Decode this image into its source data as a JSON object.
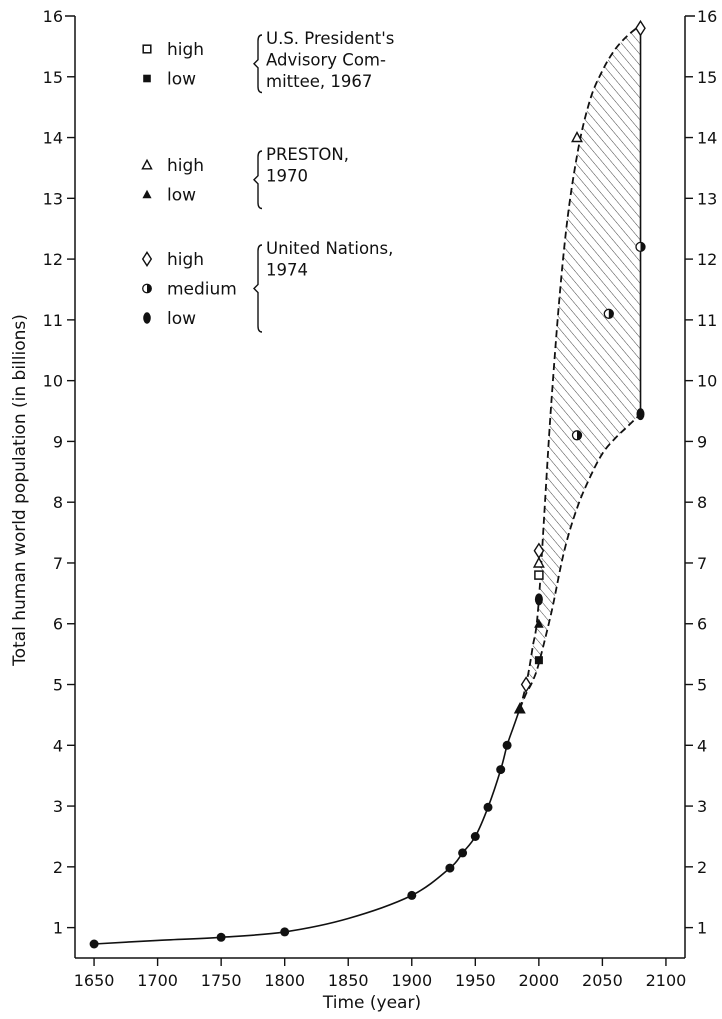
{
  "chart_data": {
    "type": "line",
    "xlabel": "Time (year)",
    "ylabel": "Total human world population (in billions)",
    "xlim": [
      1635,
      2115
    ],
    "ylim": [
      0.5,
      16
    ],
    "x_ticks": [
      1650,
      1700,
      1750,
      1800,
      1850,
      1900,
      1950,
      2000,
      2050,
      2100
    ],
    "y_ticks": [
      1,
      2,
      3,
      4,
      5,
      6,
      7,
      8,
      9,
      10,
      11,
      12,
      13,
      14,
      15,
      16
    ],
    "x_tick_labels": [
      "1650",
      "1700",
      "1750",
      "1800",
      "1850",
      "1900",
      "1950",
      "2000",
      "2050",
      "2100"
    ],
    "y_tick_labels": [
      "1",
      "2",
      "3",
      "4",
      "5",
      "6",
      "7",
      "8",
      "9",
      "10",
      "11",
      "12",
      "13",
      "14",
      "15",
      "16"
    ],
    "grid": false,
    "historical": {
      "x": [
        1650,
        1750,
        1800,
        1900,
        1930,
        1940,
        1950,
        1960,
        1970,
        1975
      ],
      "y": [
        0.73,
        0.84,
        0.93,
        1.53,
        1.98,
        2.23,
        2.5,
        2.98,
        3.6,
        4.0
      ]
    },
    "historical_curve": {
      "x": [
        1650,
        1700,
        1750,
        1800,
        1850,
        1900,
        1930,
        1940,
        1950,
        1960,
        1970,
        1975,
        1980,
        1985
      ],
      "y": [
        0.73,
        0.79,
        0.84,
        0.93,
        1.15,
        1.53,
        1.98,
        2.23,
        2.5,
        2.98,
        3.6,
        4.0,
        4.3,
        4.6
      ]
    },
    "projection_band": {
      "upper": {
        "x": [
          1985,
          1990,
          1995,
          2000,
          2010,
          2020,
          2030,
          2040,
          2050,
          2060,
          2070,
          2080
        ],
        "y": [
          4.6,
          5.0,
          5.6,
          6.4,
          9.7,
          12.2,
          13.7,
          14.6,
          15.1,
          15.45,
          15.68,
          15.85
        ]
      },
      "lower": {
        "x": [
          1985,
          1990,
          1995,
          2000,
          2010,
          2020,
          2030,
          2040,
          2050,
          2060,
          2070,
          2080
        ],
        "y": [
          4.6,
          4.85,
          5.05,
          5.35,
          6.2,
          7.2,
          7.9,
          8.4,
          8.8,
          9.05,
          9.25,
          9.45
        ]
      },
      "cap_x": 2080
    },
    "series": [
      {
        "name": "U.S. President's Advisory Committee, 1967 — high",
        "marker": "open-square",
        "x": [
          2000
        ],
        "y": [
          6.8
        ]
      },
      {
        "name": "U.S. President's Advisory Committee, 1967 — low",
        "marker": "filled-square",
        "x": [
          2000
        ],
        "y": [
          5.4
        ]
      },
      {
        "name": "PRESTON, 1970 — high",
        "marker": "open-triangle",
        "x": [
          1985,
          2000,
          2030
        ],
        "y": [
          4.6,
          7.0,
          14.0
        ]
      },
      {
        "name": "PRESTON, 1970 — low",
        "marker": "filled-triangle",
        "x": [
          1985,
          2000
        ],
        "y": [
          4.6,
          6.0
        ]
      },
      {
        "name": "United Nations, 1974 — high",
        "marker": "open-diamond",
        "x": [
          1990,
          2000,
          2080
        ],
        "y": [
          5.0,
          7.2,
          15.8
        ]
      },
      {
        "name": "United Nations, 1974 — medium",
        "marker": "half-circle",
        "x": [
          2030,
          2055,
          2080
        ],
        "y": [
          9.1,
          11.1,
          12.2
        ]
      },
      {
        "name": "United Nations, 1974 — low",
        "marker": "filled-ellipse",
        "x": [
          2000,
          2080
        ],
        "y": [
          6.4,
          9.45
        ]
      }
    ],
    "legend": {
      "placement": "top-left",
      "groups": [
        {
          "source_lines": [
            "U.S. President's",
            "Advisory Com-",
            "mittee, 1967"
          ],
          "items": [
            {
              "marker": "open-square",
              "label": "high"
            },
            {
              "marker": "filled-square",
              "label": "low"
            }
          ]
        },
        {
          "source_lines": [
            "PRESTON,",
            "1970"
          ],
          "items": [
            {
              "marker": "open-triangle",
              "label": "high"
            },
            {
              "marker": "filled-triangle",
              "label": "low"
            }
          ]
        },
        {
          "source_lines": [
            "United Nations,",
            "1974"
          ],
          "items": [
            {
              "marker": "open-diamond",
              "label": "high"
            },
            {
              "marker": "half-circle",
              "label": "medium"
            },
            {
              "marker": "filled-ellipse",
              "label": "low"
            }
          ]
        }
      ]
    }
  }
}
